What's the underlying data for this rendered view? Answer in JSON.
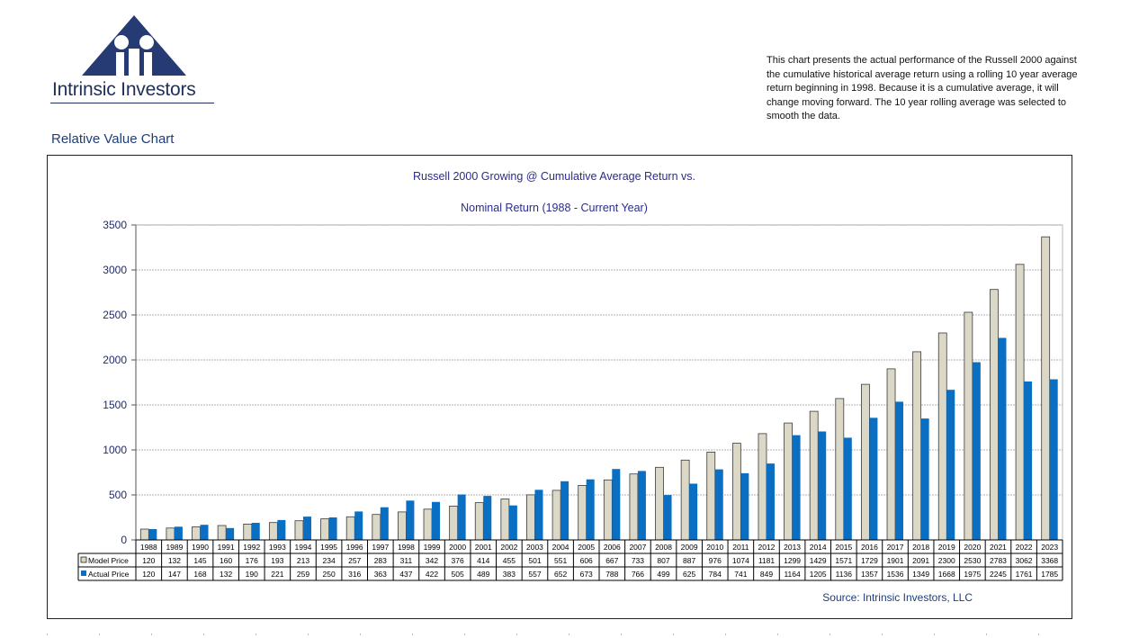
{
  "brand": {
    "name": "Intrinsic Investors"
  },
  "description": "This chart presents the actual performance of the Russell 2000 against the cumulative historical average return using a rolling 10 year average return beginning in 1998. Because it is a cumulative average, it will change moving forward. The 10 year rolling average was selected to smooth the data.",
  "section_title": "Relative Value Chart",
  "colors": {
    "brand_navy": "#1f2f5c",
    "model_bar": "#dcd8c8",
    "actual_bar": "#0a6fc2",
    "title_text": "#2b2b8c",
    "axis_text": "#1f2a6b"
  },
  "chart_data": {
    "type": "bar",
    "title": "Russell 2000 Growing @  Cumulative Average Return vs.",
    "subtitle": "Nominal Return  (1988 - Current Year)",
    "source": "Source: Intrinsic Investors, LLC",
    "ylim": [
      0,
      3500
    ],
    "yticks": [
      0,
      500,
      1000,
      1500,
      2000,
      2500,
      3000,
      3500
    ],
    "grid": true,
    "legend": "data-table",
    "categories": [
      "1988",
      "1989",
      "1990",
      "1991",
      "1992",
      "1993",
      "1994",
      "1995",
      "1996",
      "1997",
      "1998",
      "1999",
      "2000",
      "2001",
      "2002",
      "2003",
      "2004",
      "2005",
      "2006",
      "2007",
      "2008",
      "2009",
      "2010",
      "2011",
      "2012",
      "2013",
      "2014",
      "2015",
      "2016",
      "2017",
      "2018",
      "2019",
      "2020",
      "2021",
      "2022",
      "2023"
    ],
    "series": [
      {
        "name": "Model Price",
        "color": "#dcd8c8",
        "values": [
          120,
          132,
          145,
          160,
          176,
          193,
          213,
          234,
          257,
          283,
          311,
          342,
          376,
          414,
          455,
          501,
          551,
          606,
          667,
          733,
          807,
          887,
          976,
          1074,
          1181,
          1299,
          1429,
          1571,
          1729,
          1901,
          2091,
          2300,
          2530,
          2783,
          3062,
          3368
        ]
      },
      {
        "name": "Actual Price",
        "color": "#0a6fc2",
        "values": [
          120,
          147,
          168,
          132,
          190,
          221,
          259,
          250,
          316,
          363,
          437,
          422,
          505,
          489,
          383,
          557,
          652,
          673,
          788,
          766,
          499,
          625,
          784,
          741,
          849,
          1164,
          1205,
          1136,
          1357,
          1536,
          1349,
          1668,
          1975,
          2245,
          1761,
          1785
        ]
      }
    ]
  }
}
